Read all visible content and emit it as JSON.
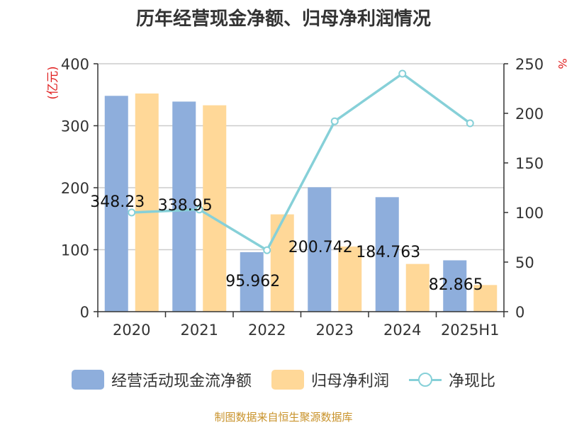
{
  "title": "历年经营现金净额、归母净利润情况",
  "source": "制图数据来自恒生聚源数据库",
  "chart_data": {
    "type": "bar",
    "categories": [
      "2020",
      "2021",
      "2022",
      "2023",
      "2024",
      "2025H1"
    ],
    "series": [
      {
        "name": "经营活动现金流净额",
        "type": "bar",
        "axis": "left",
        "color": "#8eaedc",
        "values": [
          348.23,
          338.95,
          95.962,
          200.742,
          184.763,
          82.865
        ]
      },
      {
        "name": "归母净利润",
        "type": "bar",
        "axis": "left",
        "color": "#ffd898",
        "values": [
          352,
          333,
          157,
          105,
          77,
          43
        ]
      },
      {
        "name": "净现比",
        "type": "line",
        "axis": "right",
        "color": "#86d0d8",
        "values": [
          100,
          103,
          62,
          192,
          240,
          190
        ]
      }
    ],
    "data_labels": [
      "348.23",
      "338.95",
      "95.962",
      "200.742",
      "184.763",
      "82.865"
    ],
    "y_left": {
      "label": "(亿元)",
      "ylim": [
        0,
        400
      ],
      "ticks": [
        0,
        100,
        200,
        300,
        400
      ]
    },
    "y_right": {
      "label": "%",
      "ylim": [
        0,
        250
      ],
      "ticks": [
        0,
        50,
        100,
        150,
        200,
        250
      ]
    },
    "grid": true,
    "legend": "bottom"
  }
}
